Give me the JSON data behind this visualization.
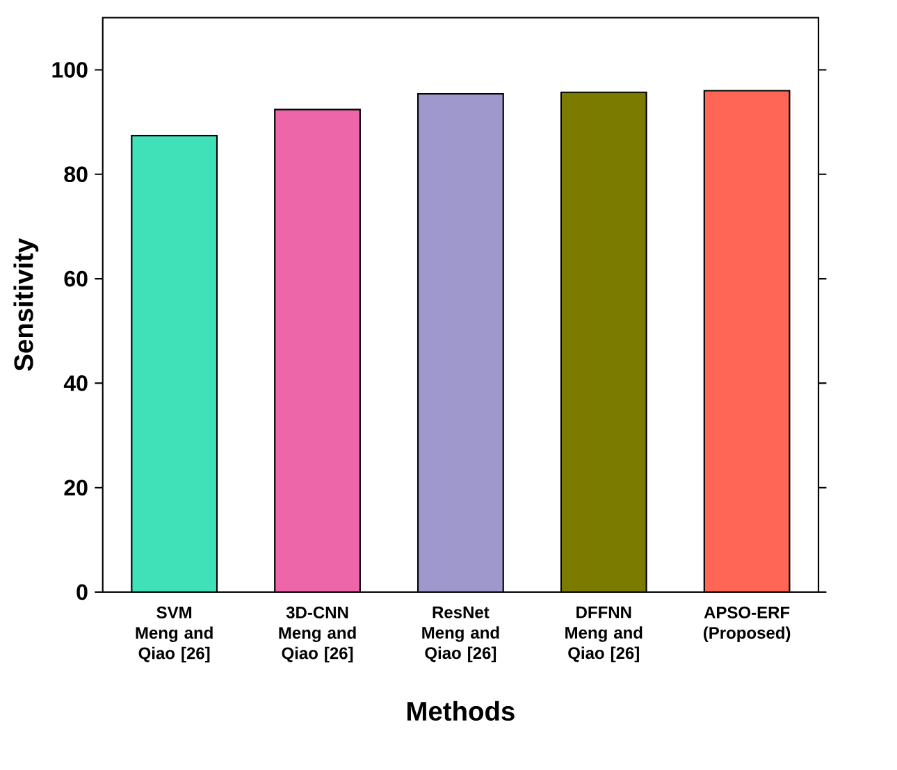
{
  "chart_data": {
    "type": "bar",
    "xlabel": "Methods",
    "ylabel": "Sensitivity",
    "categories": [
      "SVM Meng and Qiao [26]",
      "3D-CNN Meng and Qiao [26]",
      "ResNet Meng and Qiao [26]",
      "DFFNN Meng and Qiao [26]",
      "APSO-ERF (Proposed)"
    ],
    "values": [
      87.4,
      92.4,
      95.4,
      95.7,
      96.0
    ],
    "colors": [
      "#40e0b8",
      "#ee66aa",
      "#9e98cc",
      "#7b7b00",
      "#ff6655"
    ],
    "ylim": [
      0,
      110
    ],
    "yticks": [
      0,
      20,
      40,
      60,
      80,
      100
    ],
    "grid": false
  }
}
